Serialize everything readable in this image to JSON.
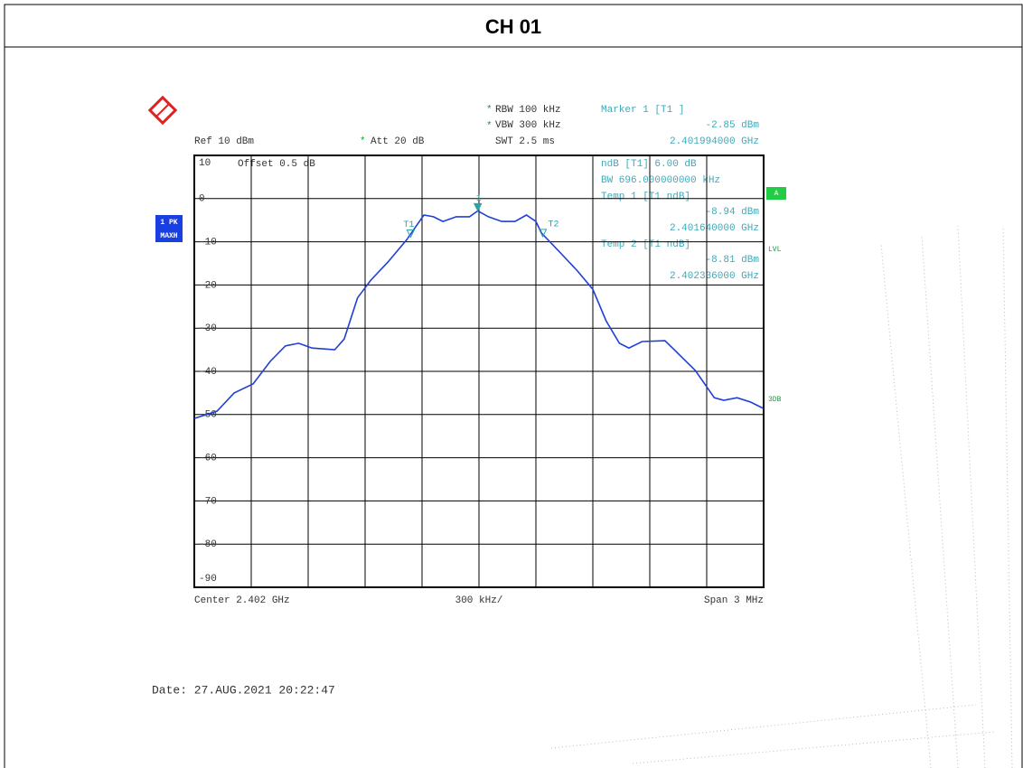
{
  "page_title": "CH 01",
  "chart_data": {
    "type": "line",
    "info": {
      "rbw": "RBW 100 kHz",
      "vbw": "VBW 300 kHz",
      "swt": "SWT 2.5 ms",
      "ref": "Ref  10 dBm",
      "att": "Att  20 dB",
      "offset": "Offset  0.5 dB"
    },
    "marker_table": [
      "Marker 1 [T1 ]",
      "-2.85 dBm",
      "2.401994000 GHz",
      "ndB [T1]     6.00 dB",
      "BW 696.000000000 kHz",
      "Temp 1 [T1 ndB]",
      "-8.94 dBm",
      "2.401640000 GHz",
      "Temp 2 [T1 ndB]",
      "-8.81 dBm",
      "2.402336000 GHz"
    ],
    "side_labels": {
      "trace": "1 PK",
      "mode": "MAXH",
      "a": "A",
      "lvl": "LVL",
      "db3": "3DB"
    },
    "footer": {
      "center": "Center 2.402 GHz",
      "div": "300 kHz/",
      "span": "Span 3 MHz"
    },
    "x": [
      2.4005,
      2.40062,
      2.40071,
      2.40081,
      2.4009,
      2.40098,
      2.40105,
      2.40112,
      2.40124,
      2.40129,
      2.40136,
      2.40143,
      2.40152,
      2.40162,
      2.40167,
      2.40171,
      2.40176,
      2.40181,
      2.40188,
      2.40195,
      2.401994,
      2.40205,
      2.40212,
      2.40219,
      2.40225,
      2.4023,
      2.40233,
      2.40243,
      2.40252,
      2.4026,
      2.40267,
      2.40274,
      2.40279,
      2.40286,
      2.40298,
      2.40302,
      2.40314,
      2.40324,
      2.40329,
      2.40336,
      2.40343,
      2.4035
    ],
    "values": [
      -50.9,
      -49.2,
      -45,
      -42.9,
      -37.7,
      -34.1,
      -33.5,
      -34.6,
      -35,
      -32.5,
      -23,
      -18.9,
      -14.7,
      -9.5,
      -6.3,
      -3.8,
      -4.2,
      -5.3,
      -4.2,
      -4.2,
      -2.85,
      -4.2,
      -5.3,
      -5.3,
      -3.8,
      -5.3,
      -8,
      -12.6,
      -16.8,
      -21,
      -28.3,
      -33.5,
      -34.6,
      -33.1,
      -32.9,
      -34.6,
      -39.8,
      -46.1,
      -46.7,
      -46.1,
      -47.1,
      -48.6
    ],
    "color": "#1f3fd6",
    "markers": [
      {
        "label": "1",
        "x": 2.401994,
        "y": -2.85
      },
      {
        "label": "T1",
        "x": 2.40164,
        "y": -8.94
      },
      {
        "label": "T2",
        "x": 2.402336,
        "y": -8.81
      }
    ],
    "marker_color": "#2aa3a3",
    "xlim": [
      2.4005,
      2.4035
    ],
    "ylim": [
      -90,
      10
    ],
    "yticks": [
      10,
      0,
      -10,
      -20,
      -30,
      -40,
      -50,
      -60,
      -70,
      -80,
      -90
    ],
    "grid": true
  },
  "date": "Date: 27.AUG.2021  20:22:47"
}
